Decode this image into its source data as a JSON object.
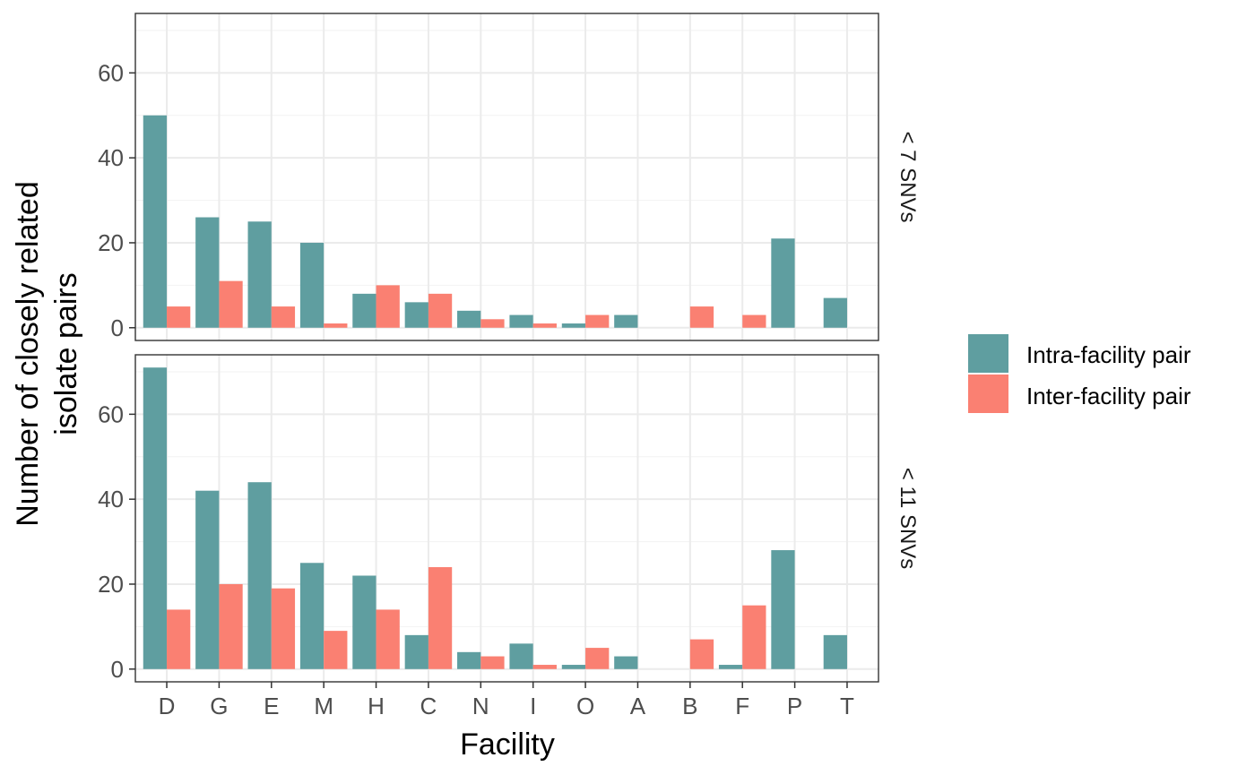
{
  "chart_data": {
    "type": "bar",
    "xlabel": "Facility",
    "ylabel_lines": [
      "Number of closely related",
      "isolate pairs"
    ],
    "categories": [
      "D",
      "G",
      "E",
      "M",
      "H",
      "C",
      "N",
      "I",
      "O",
      "A",
      "B",
      "F",
      "P",
      "T"
    ],
    "ylim": [
      -3,
      74
    ],
    "yticks": [
      0,
      20,
      40,
      60
    ],
    "grid": true,
    "legend_position": "right",
    "colors": {
      "intra": "#5F9EA0",
      "inter": "#FA8072"
    },
    "series_names": [
      "Intra-facility pair",
      "Inter-facility pair"
    ],
    "panels": [
      {
        "strip": "< 7 SNVs",
        "series": [
          {
            "name": "Intra-facility pair",
            "values": [
              50,
              26,
              25,
              20,
              8,
              6,
              4,
              3,
              1,
              3,
              0,
              0,
              21,
              7
            ]
          },
          {
            "name": "Inter-facility pair",
            "values": [
              5,
              11,
              5,
              1,
              10,
              8,
              2,
              1,
              3,
              0,
              5,
              3,
              0,
              0
            ]
          }
        ]
      },
      {
        "strip": "< 11 SNVs",
        "series": [
          {
            "name": "Intra-facility pair",
            "values": [
              71,
              42,
              44,
              25,
              22,
              8,
              4,
              6,
              1,
              3,
              0,
              1,
              28,
              8
            ]
          },
          {
            "name": "Inter-facility pair",
            "values": [
              14,
              20,
              19,
              9,
              14,
              24,
              3,
              1,
              5,
              0,
              7,
              15,
              0,
              0
            ]
          }
        ]
      }
    ]
  }
}
